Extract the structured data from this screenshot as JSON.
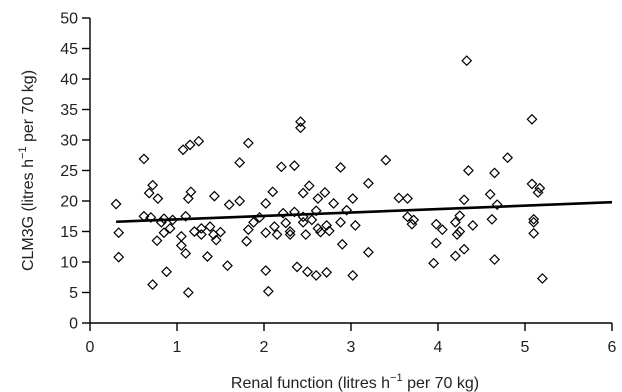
{
  "chart_data": {
    "type": "scatter",
    "title": "",
    "xlabel_parts": [
      "Renal function (litres h",
      "−1",
      " per 70 kg)"
    ],
    "ylabel_parts": [
      "CLM3G (litres h",
      "−1",
      " per 70 kg)"
    ],
    "xlim": [
      0,
      6
    ],
    "ylim": [
      0,
      50
    ],
    "xticks": [
      0,
      1,
      2,
      3,
      4,
      5,
      6
    ],
    "yticks": [
      0,
      5,
      10,
      15,
      20,
      25,
      30,
      35,
      40,
      45,
      50
    ],
    "grid": false,
    "marker": "diamond",
    "points": [
      [
        0.3,
        19.5
      ],
      [
        0.33,
        14.8
      ],
      [
        0.33,
        10.8
      ],
      [
        0.62,
        26.9
      ],
      [
        0.62,
        17.5
      ],
      [
        0.68,
        21.3
      ],
      [
        0.7,
        17.3
      ],
      [
        0.72,
        22.6
      ],
      [
        0.72,
        6.3
      ],
      [
        0.77,
        13.5
      ],
      [
        0.78,
        20.4
      ],
      [
        0.82,
        16.5
      ],
      [
        0.85,
        17.1
      ],
      [
        0.85,
        14.8
      ],
      [
        0.88,
        8.4
      ],
      [
        0.92,
        15.5
      ],
      [
        0.95,
        16.9
      ],
      [
        1.05,
        14.2
      ],
      [
        1.05,
        12.7
      ],
      [
        1.07,
        28.4
      ],
      [
        1.1,
        17.5
      ],
      [
        1.1,
        11.4
      ],
      [
        1.13,
        20.4
      ],
      [
        1.13,
        5.0
      ],
      [
        1.15,
        29.2
      ],
      [
        1.16,
        21.5
      ],
      [
        1.2,
        15.0
      ],
      [
        1.25,
        29.8
      ],
      [
        1.28,
        15.5
      ],
      [
        1.28,
        14.5
      ],
      [
        1.35,
        10.9
      ],
      [
        1.38,
        15.8
      ],
      [
        1.42,
        14.5
      ],
      [
        1.43,
        20.8
      ],
      [
        1.45,
        13.6
      ],
      [
        1.5,
        14.9
      ],
      [
        1.58,
        9.4
      ],
      [
        1.6,
        19.4
      ],
      [
        1.72,
        26.3
      ],
      [
        1.72,
        20.0
      ],
      [
        1.8,
        13.4
      ],
      [
        1.82,
        29.5
      ],
      [
        1.82,
        15.3
      ],
      [
        1.88,
        16.5
      ],
      [
        1.95,
        17.3
      ],
      [
        2.02,
        19.6
      ],
      [
        2.02,
        14.8
      ],
      [
        2.02,
        8.6
      ],
      [
        2.05,
        5.2
      ],
      [
        2.1,
        21.5
      ],
      [
        2.12,
        15.8
      ],
      [
        2.15,
        14.5
      ],
      [
        2.2,
        25.6
      ],
      [
        2.22,
        18.0
      ],
      [
        2.25,
        16.4
      ],
      [
        2.3,
        15.0
      ],
      [
        2.3,
        14.5
      ],
      [
        2.35,
        18.2
      ],
      [
        2.35,
        25.8
      ],
      [
        2.38,
        9.2
      ],
      [
        2.42,
        33.0
      ],
      [
        2.42,
        32.0
      ],
      [
        2.45,
        21.3
      ],
      [
        2.45,
        17.4
      ],
      [
        2.45,
        16.5
      ],
      [
        2.48,
        14.5
      ],
      [
        2.5,
        8.4
      ],
      [
        2.52,
        22.5
      ],
      [
        2.55,
        16.9
      ],
      [
        2.6,
        18.4
      ],
      [
        2.6,
        7.8
      ],
      [
        2.62,
        20.4
      ],
      [
        2.62,
        15.5
      ],
      [
        2.65,
        14.9
      ],
      [
        2.7,
        21.4
      ],
      [
        2.72,
        16.0
      ],
      [
        2.72,
        8.3
      ],
      [
        2.75,
        15.1
      ],
      [
        2.8,
        19.6
      ],
      [
        2.88,
        25.5
      ],
      [
        2.88,
        16.5
      ],
      [
        2.9,
        12.9
      ],
      [
        2.95,
        18.5
      ],
      [
        3.02,
        20.4
      ],
      [
        3.02,
        7.8
      ],
      [
        3.05,
        16.0
      ],
      [
        3.2,
        22.9
      ],
      [
        3.2,
        11.6
      ],
      [
        3.4,
        26.7
      ],
      [
        3.55,
        20.5
      ],
      [
        3.65,
        17.4
      ],
      [
        3.65,
        20.4
      ],
      [
        3.7,
        16.2
      ],
      [
        3.72,
        16.9
      ],
      [
        3.95,
        9.8
      ],
      [
        3.98,
        16.2
      ],
      [
        3.98,
        13.1
      ],
      [
        4.05,
        15.3
      ],
      [
        4.2,
        16.5
      ],
      [
        4.2,
        11.0
      ],
      [
        4.22,
        14.5
      ],
      [
        4.25,
        17.6
      ],
      [
        4.25,
        15.0
      ],
      [
        4.3,
        20.2
      ],
      [
        4.3,
        12.1
      ],
      [
        4.33,
        43.0
      ],
      [
        4.35,
        25.0
      ],
      [
        4.4,
        16.0
      ],
      [
        4.6,
        21.1
      ],
      [
        4.62,
        17.0
      ],
      [
        4.65,
        10.4
      ],
      [
        4.65,
        24.6
      ],
      [
        4.68,
        19.4
      ],
      [
        4.8,
        27.1
      ],
      [
        5.08,
        33.4
      ],
      [
        5.08,
        22.8
      ],
      [
        5.1,
        17.0
      ],
      [
        5.1,
        16.5
      ],
      [
        5.1,
        14.7
      ],
      [
        5.15,
        21.4
      ],
      [
        5.17,
        22.1
      ],
      [
        5.2,
        7.3
      ]
    ],
    "trendline": {
      "x": [
        0.3,
        6.0
      ],
      "y": [
        16.6,
        19.8
      ]
    }
  }
}
